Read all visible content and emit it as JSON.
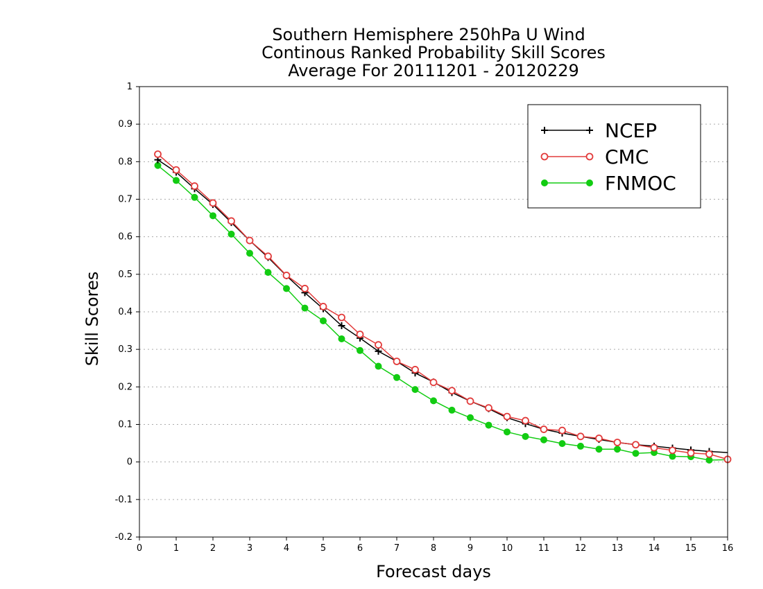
{
  "chart_data": {
    "type": "line",
    "title": [
      "Southern Hemisphere 250hPa U Wind",
      "Continous Ranked Probability Skill Scores",
      "Average For 20111201 - 20120229"
    ],
    "xlabel": "Forecast days",
    "ylabel": "Skill Scores",
    "xlim": [
      0,
      16
    ],
    "ylim": [
      -0.2,
      1
    ],
    "xticks": [
      0,
      1,
      2,
      3,
      4,
      5,
      6,
      7,
      8,
      9,
      10,
      11,
      12,
      13,
      14,
      15,
      16
    ],
    "yticks": [
      -0.2,
      -0.1,
      0,
      0.1,
      0.2,
      0.3,
      0.4,
      0.5,
      0.6,
      0.7,
      0.8,
      0.9,
      1
    ],
    "ytick_labels": [
      "-0.2",
      "-0.1",
      "0",
      "0.1",
      "0.2",
      "0.3",
      "0.4",
      "0.5",
      "0.6",
      "0.7",
      "0.8",
      "0.9",
      "1"
    ],
    "grid": "horizontal dotted",
    "legend_position": "top-right",
    "x": [
      0.5,
      1,
      1.5,
      2,
      2.5,
      3,
      3.5,
      4,
      4.5,
      5,
      5.5,
      6,
      6.5,
      7,
      7.5,
      8,
      8.5,
      9,
      9.5,
      10,
      10.5,
      11,
      11.5,
      12,
      12.5,
      13,
      13.5,
      14,
      14.5,
      15,
      15.5,
      16
    ],
    "series": [
      {
        "name": "NCEP",
        "color": "#000000",
        "marker": "plus",
        "values": [
          0.805,
          0.772,
          0.728,
          0.686,
          0.638,
          0.59,
          0.545,
          0.496,
          0.451,
          0.408,
          0.363,
          0.33,
          0.295,
          0.268,
          0.237,
          0.213,
          0.185,
          0.162,
          0.142,
          0.118,
          0.102,
          0.087,
          0.077,
          0.068,
          0.06,
          0.052,
          0.046,
          0.042,
          0.037,
          0.032,
          0.028,
          0.025
        ]
      },
      {
        "name": "CMC",
        "color": "#e23b3b",
        "marker": "open-circle",
        "values": [
          0.82,
          0.778,
          0.735,
          0.69,
          0.642,
          0.59,
          0.548,
          0.497,
          0.462,
          0.414,
          0.385,
          0.34,
          0.312,
          0.268,
          0.246,
          0.212,
          0.19,
          0.162,
          0.144,
          0.121,
          0.11,
          0.087,
          0.084,
          0.068,
          0.063,
          0.052,
          0.046,
          0.038,
          0.031,
          0.024,
          0.021,
          0.007
        ]
      },
      {
        "name": "FNMOC",
        "color": "#12cc12",
        "marker": "filled-circle",
        "values": [
          0.79,
          0.75,
          0.705,
          0.656,
          0.607,
          0.556,
          0.505,
          0.462,
          0.41,
          0.376,
          0.328,
          0.297,
          0.255,
          0.225,
          0.193,
          0.163,
          0.138,
          0.118,
          0.098,
          0.08,
          0.068,
          0.059,
          0.049,
          0.042,
          0.034,
          0.034,
          0.023,
          0.025,
          0.015,
          0.014,
          0.005,
          0.006
        ]
      }
    ]
  }
}
